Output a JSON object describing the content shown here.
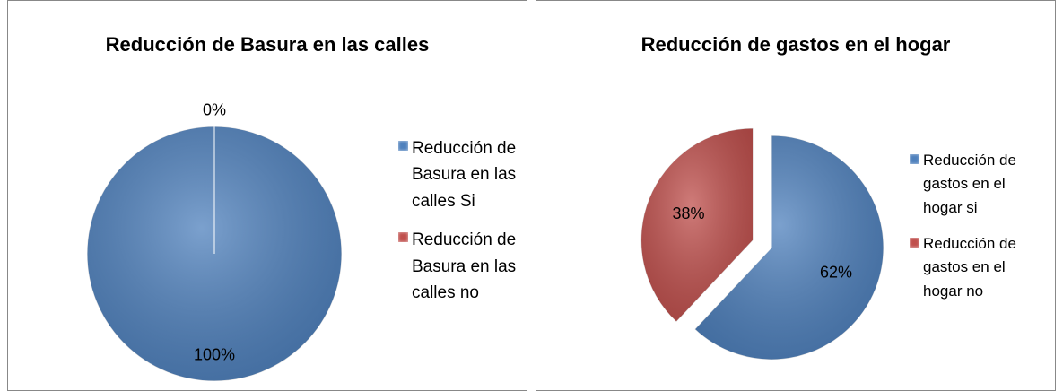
{
  "chart_data": [
    {
      "type": "pie",
      "title": "Reducción de Basura en las calles",
      "categories": [
        "Reducción de Basura en las calles Si",
        "Reducción de Basura en las calles no"
      ],
      "values": [
        100,
        0
      ],
      "value_labels": [
        "100%",
        "0%"
      ],
      "colors": [
        "#4f81bd",
        "#c0504d"
      ],
      "legend": "right"
    },
    {
      "type": "pie",
      "title": "Reducción de gastos en el hogar",
      "categories": [
        "Reducción de gastos en el hogar si",
        "Reducción de gastos en el hogar no"
      ],
      "values": [
        62,
        38
      ],
      "value_labels": [
        "62%",
        "38%"
      ],
      "colors": [
        "#4f81bd",
        "#c0504d"
      ],
      "legend": "right"
    }
  ]
}
